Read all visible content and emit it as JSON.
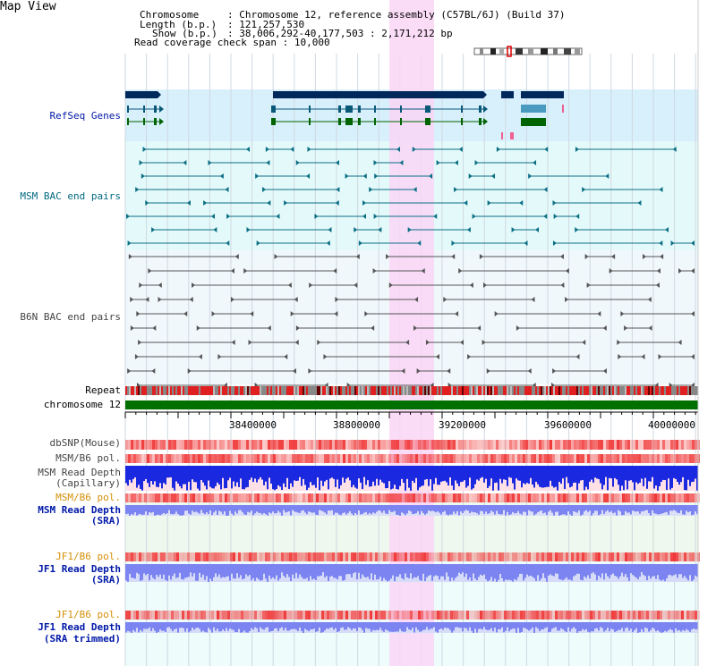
{
  "page_title": "Map View",
  "header": {
    "chromosome_key": "Chromosome",
    "chromosome_val": "Chromosome 12, reference assembly (C57BL/6J) (Build 37)",
    "length_key": "Length (b.p.)",
    "length_val": "121,257,530",
    "show_key": "Show (b.p.)",
    "show_val": "38,006,292-40,177,503 : 2,171,212 bp",
    "coverage_key": "Read coverage check span",
    "coverage_val": "10,000"
  },
  "tracks": {
    "refseq_genes": "RefSeq Genes",
    "msm_bac": "MSM BAC end pairs",
    "b6n_bac": "B6N BAC end pairs",
    "repeat": "Repeat",
    "chromosome": "chromosome 12",
    "dbsnp": "dbSNP(Mouse)",
    "msm_b6_pol": "MSM/B6 pol.",
    "msm_read_depth_cap_1": "MSM Read Depth",
    "msm_read_depth_cap_2": "(Capillary)",
    "msm_b6_pol_sra": "MSM/B6 pol.",
    "msm_read_depth_sra_1": "MSM Read Depth",
    "msm_read_depth_sra_2": "(SRA)",
    "jf1_b6_pol": "JF1/B6 pol.",
    "jf1_read_depth_1": "JF1 Read Depth",
    "jf1_read_depth_2": "(SRA)",
    "jf1_b6_pol_trim": "JF1/B6 pol.",
    "jf1_trim_1": "JF1 Read Depth",
    "jf1_trim_2": "(SRA trimmed)"
  },
  "axis_ticks": [
    "38400000",
    "38800000",
    "39200000",
    "39600000",
    "40000000"
  ],
  "colors": {
    "refseq_bg": "#d8f0fc",
    "msm_bg": "#e4fafa",
    "b6n_bg": "#f0f8fc",
    "highlight": "#fad6f6",
    "gene_dark": "#00285a",
    "gene_green": "#006400",
    "msm_line": "#0a6e84",
    "b6n_line": "#555555",
    "chrom_bar": "#007000",
    "snp_red": "#f03a3a",
    "depth_blue": "#1a28e0",
    "depth_light": "#7b84f0"
  }
}
